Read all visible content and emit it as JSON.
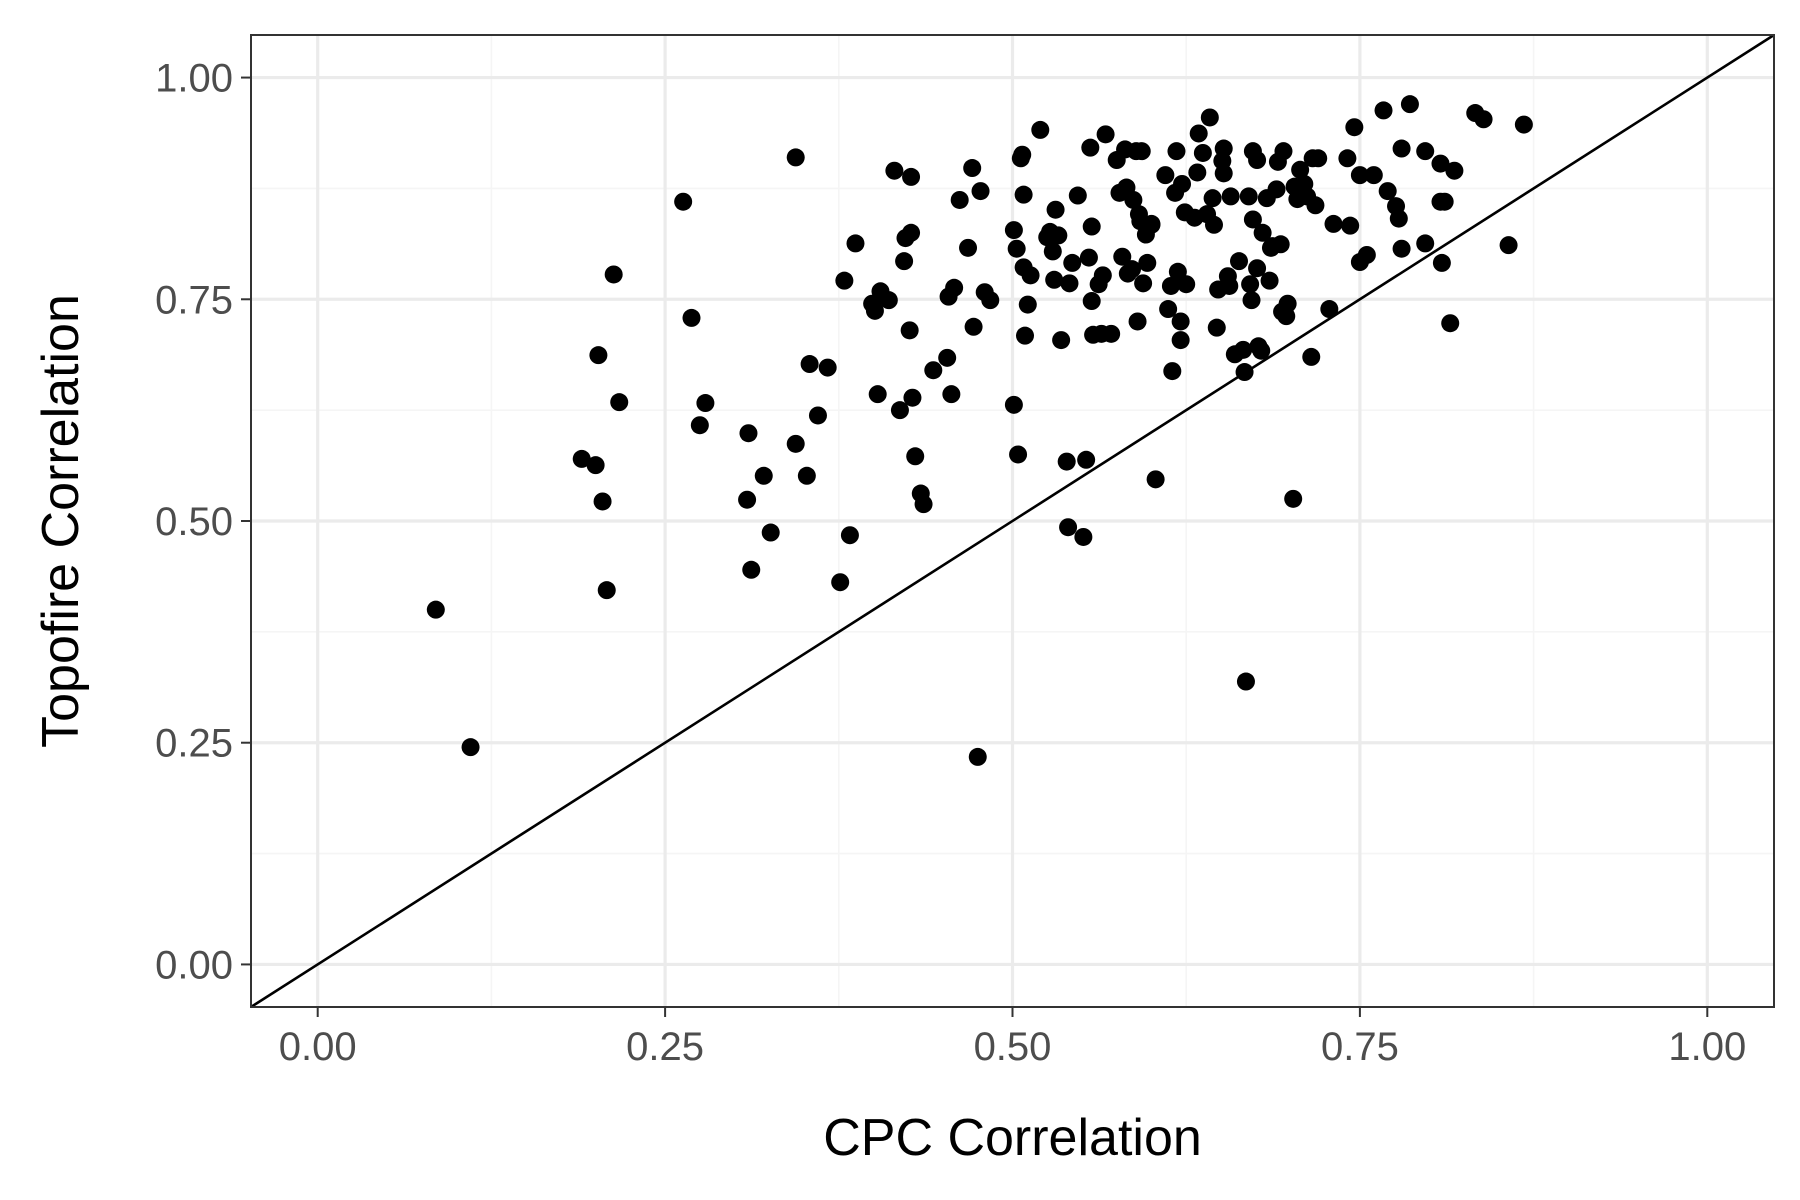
{
  "chart_data": {
    "type": "scatter",
    "title": "",
    "xlabel": "CPC Correlation",
    "ylabel": "Topofire Correlation",
    "xlim": [
      -0.048,
      1.048
    ],
    "ylim": [
      -0.048,
      1.048
    ],
    "x_ticks": [
      0.0,
      0.25,
      0.5,
      0.75,
      1.0
    ],
    "x_tick_labels": [
      "0.00",
      "0.25",
      "0.50",
      "0.75",
      "1.00"
    ],
    "y_ticks": [
      0.0,
      0.25,
      0.5,
      0.75,
      1.0
    ],
    "y_tick_labels": [
      "0.00",
      "0.25",
      "0.50",
      "0.75",
      "1.00"
    ],
    "grid": true,
    "reference_line": "y = x",
    "colors": {
      "points": "#000000",
      "grid_major": "#ebebeb",
      "grid_minor": "#f5f5f5",
      "panel_border": "#333333",
      "tick_text": "#4d4d4d"
    },
    "points": [
      [
        0.085,
        0.4
      ],
      [
        0.11,
        0.245
      ],
      [
        0.19,
        0.57
      ],
      [
        0.2,
        0.563
      ],
      [
        0.202,
        0.687
      ],
      [
        0.205,
        0.522
      ],
      [
        0.208,
        0.422
      ],
      [
        0.213,
        0.778
      ],
      [
        0.217,
        0.634
      ],
      [
        0.263,
        0.86
      ],
      [
        0.269,
        0.729
      ],
      [
        0.275,
        0.608
      ],
      [
        0.279,
        0.633
      ],
      [
        0.309,
        0.524
      ],
      [
        0.31,
        0.599
      ],
      [
        0.312,
        0.445
      ],
      [
        0.321,
        0.551
      ],
      [
        0.326,
        0.487
      ],
      [
        0.344,
        0.91
      ],
      [
        0.344,
        0.587
      ],
      [
        0.352,
        0.551
      ],
      [
        0.354,
        0.677
      ],
      [
        0.36,
        0.619
      ],
      [
        0.367,
        0.673
      ],
      [
        0.376,
        0.431
      ],
      [
        0.379,
        0.771
      ],
      [
        0.383,
        0.484
      ],
      [
        0.387,
        0.813
      ],
      [
        0.399,
        0.745
      ],
      [
        0.401,
        0.737
      ],
      [
        0.403,
        0.643
      ],
      [
        0.405,
        0.759
      ],
      [
        0.411,
        0.749
      ],
      [
        0.415,
        0.895
      ],
      [
        0.419,
        0.625
      ],
      [
        0.422,
        0.793
      ],
      [
        0.423,
        0.819
      ],
      [
        0.426,
        0.715
      ],
      [
        0.427,
        0.888
      ],
      [
        0.427,
        0.825
      ],
      [
        0.428,
        0.639
      ],
      [
        0.43,
        0.573
      ],
      [
        0.434,
        0.531
      ],
      [
        0.436,
        0.519
      ],
      [
        0.443,
        0.67
      ],
      [
        0.453,
        0.684
      ],
      [
        0.454,
        0.753
      ],
      [
        0.456,
        0.643
      ],
      [
        0.458,
        0.763
      ],
      [
        0.462,
        0.862
      ],
      [
        0.468,
        0.808
      ],
      [
        0.471,
        0.898
      ],
      [
        0.472,
        0.719
      ],
      [
        0.475,
        0.234
      ],
      [
        0.477,
        0.872
      ],
      [
        0.48,
        0.758
      ],
      [
        0.484,
        0.749
      ],
      [
        0.501,
        0.828
      ],
      [
        0.501,
        0.631
      ],
      [
        0.503,
        0.807
      ],
      [
        0.504,
        0.575
      ],
      [
        0.506,
        0.909
      ],
      [
        0.507,
        0.913
      ],
      [
        0.508,
        0.868
      ],
      [
        0.508,
        0.786
      ],
      [
        0.509,
        0.709
      ],
      [
        0.511,
        0.744
      ],
      [
        0.513,
        0.777
      ],
      [
        0.52,
        0.941
      ],
      [
        0.525,
        0.82
      ],
      [
        0.527,
        0.826
      ],
      [
        0.529,
        0.804
      ],
      [
        0.53,
        0.772
      ],
      [
        0.531,
        0.851
      ],
      [
        0.533,
        0.822
      ],
      [
        0.535,
        0.704
      ],
      [
        0.539,
        0.567
      ],
      [
        0.54,
        0.493
      ],
      [
        0.541,
        0.768
      ],
      [
        0.543,
        0.791
      ],
      [
        0.547,
        0.867
      ],
      [
        0.551,
        0.482
      ],
      [
        0.553,
        0.569
      ],
      [
        0.555,
        0.797
      ],
      [
        0.556,
        0.921
      ],
      [
        0.557,
        0.748
      ],
      [
        0.557,
        0.832
      ],
      [
        0.558,
        0.71
      ],
      [
        0.562,
        0.767
      ],
      [
        0.564,
        0.711
      ],
      [
        0.565,
        0.777
      ],
      [
        0.567,
        0.936
      ],
      [
        0.571,
        0.711
      ],
      [
        0.575,
        0.907
      ],
      [
        0.577,
        0.87
      ],
      [
        0.579,
        0.798
      ],
      [
        0.581,
        0.919
      ],
      [
        0.582,
        0.876
      ],
      [
        0.583,
        0.779
      ],
      [
        0.586,
        0.784
      ],
      [
        0.587,
        0.862
      ],
      [
        0.589,
        0.917
      ],
      [
        0.59,
        0.725
      ],
      [
        0.591,
        0.846
      ],
      [
        0.592,
        0.838
      ],
      [
        0.593,
        0.917
      ],
      [
        0.594,
        0.768
      ],
      [
        0.596,
        0.823
      ],
      [
        0.597,
        0.791
      ],
      [
        0.6,
        0.835
      ],
      [
        0.6,
        0.834
      ],
      [
        0.603,
        0.547
      ],
      [
        0.61,
        0.89
      ],
      [
        0.612,
        0.739
      ],
      [
        0.614,
        0.765
      ],
      [
        0.615,
        0.669
      ],
      [
        0.617,
        0.87
      ],
      [
        0.618,
        0.917
      ],
      [
        0.619,
        0.781
      ],
      [
        0.621,
        0.725
      ],
      [
        0.621,
        0.704
      ],
      [
        0.622,
        0.88
      ],
      [
        0.624,
        0.848
      ],
      [
        0.625,
        0.767
      ],
      [
        0.631,
        0.842
      ],
      [
        0.633,
        0.893
      ],
      [
        0.634,
        0.937
      ],
      [
        0.637,
        0.915
      ],
      [
        0.64,
        0.846
      ],
      [
        0.642,
        0.955
      ],
      [
        0.644,
        0.864
      ],
      [
        0.645,
        0.834
      ],
      [
        0.647,
        0.718
      ],
      [
        0.648,
        0.761
      ],
      [
        0.651,
        0.906
      ],
      [
        0.652,
        0.92
      ],
      [
        0.652,
        0.892
      ],
      [
        0.655,
        0.776
      ],
      [
        0.656,
        0.765
      ],
      [
        0.657,
        0.866
      ],
      [
        0.66,
        0.688
      ],
      [
        0.663,
        0.793
      ],
      [
        0.666,
        0.693
      ],
      [
        0.667,
        0.668
      ],
      [
        0.668,
        0.319
      ],
      [
        0.67,
        0.866
      ],
      [
        0.671,
        0.767
      ],
      [
        0.672,
        0.749
      ],
      [
        0.673,
        0.917
      ],
      [
        0.673,
        0.84
      ],
      [
        0.676,
        0.907
      ],
      [
        0.676,
        0.785
      ],
      [
        0.677,
        0.697
      ],
      [
        0.679,
        0.692
      ],
      [
        0.68,
        0.825
      ],
      [
        0.683,
        0.864
      ],
      [
        0.685,
        0.771
      ],
      [
        0.686,
        0.808
      ],
      [
        0.687,
        0.81
      ],
      [
        0.69,
        0.874
      ],
      [
        0.691,
        0.905
      ],
      [
        0.693,
        0.812
      ],
      [
        0.694,
        0.736
      ],
      [
        0.695,
        0.917
      ],
      [
        0.697,
        0.731
      ],
      [
        0.698,
        0.745
      ],
      [
        0.702,
        0.525
      ],
      [
        0.703,
        0.877
      ],
      [
        0.705,
        0.863
      ],
      [
        0.707,
        0.896
      ],
      [
        0.708,
        0.868
      ],
      [
        0.71,
        0.88
      ],
      [
        0.712,
        0.866
      ],
      [
        0.715,
        0.685
      ],
      [
        0.716,
        0.909
      ],
      [
        0.718,
        0.856
      ],
      [
        0.72,
        0.909
      ],
      [
        0.728,
        0.739
      ],
      [
        0.731,
        0.835
      ],
      [
        0.741,
        0.909
      ],
      [
        0.743,
        0.833
      ],
      [
        0.746,
        0.944
      ],
      [
        0.75,
        0.89
      ],
      [
        0.75,
        0.792
      ],
      [
        0.755,
        0.8
      ],
      [
        0.76,
        0.89
      ],
      [
        0.767,
        0.963
      ],
      [
        0.77,
        0.872
      ],
      [
        0.776,
        0.855
      ],
      [
        0.778,
        0.841
      ],
      [
        0.78,
        0.92
      ],
      [
        0.78,
        0.807
      ],
      [
        0.786,
        0.97
      ],
      [
        0.797,
        0.917
      ],
      [
        0.797,
        0.813
      ],
      [
        0.808,
        0.903
      ],
      [
        0.808,
        0.86
      ],
      [
        0.809,
        0.791
      ],
      [
        0.811,
        0.86
      ],
      [
        0.815,
        0.723
      ],
      [
        0.818,
        0.895
      ],
      [
        0.833,
        0.96
      ],
      [
        0.839,
        0.953
      ],
      [
        0.857,
        0.811
      ],
      [
        0.868,
        0.947
      ]
    ]
  }
}
